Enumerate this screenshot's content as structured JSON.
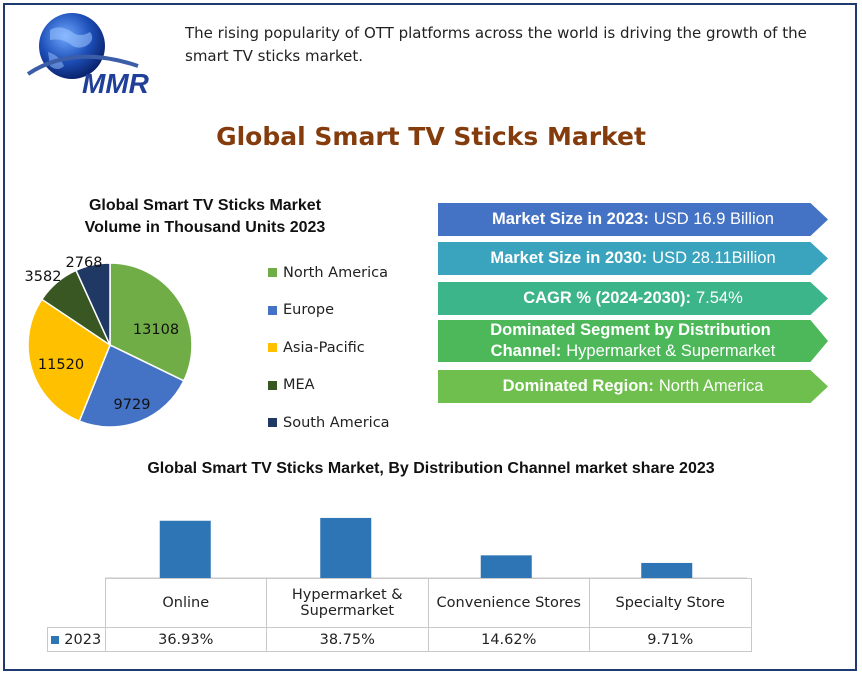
{
  "logo": {
    "text": "MMR",
    "icon": "globe-icon"
  },
  "intro_text": "The rising popularity of OTT platforms across the world is driving the growth of the smart TV sticks market.",
  "title": "Global Smart TV Sticks Market",
  "pie": {
    "title_line1": "Global Smart TV Sticks Market",
    "title_line2": "Volume in Thousand  Units 2023"
  },
  "highlights": [
    {
      "label": "Market Size in 2023:",
      "value": "USD 16.9 Billion",
      "color": "#4472c4"
    },
    {
      "label": "Market Size in 2030:",
      "value": "USD 28.11Billion",
      "color": "#3aa4be"
    },
    {
      "label": "CAGR % (2024-2030):",
      "value": "7.54%",
      "color": "#3cb58b"
    },
    {
      "label": "Dominated Segment by  Distribution Channel:",
      "value": "Hypermarket & Supermarket",
      "color": "#4cb85a",
      "label_line1": "Dominated Segment by  Distribution",
      "label_line2": "Channel:"
    },
    {
      "label": "Dominated Region:",
      "value": "North America",
      "color": "#6fbf4e"
    }
  ],
  "bar": {
    "title": "Global Smart TV Sticks Market, By  Distribution Channel market share  2023"
  },
  "chart_data": [
    {
      "type": "pie",
      "title": "Global Smart TV Sticks Market Volume in Thousand  Units 2023",
      "categories": [
        "North America",
        "Europe",
        "Asia-Pacific",
        "MEA",
        "South America"
      ],
      "values": [
        13108,
        9729,
        11520,
        3582,
        2768
      ],
      "labels": [
        "13108",
        "9729",
        "11520",
        "3582",
        "2768"
      ],
      "colors": [
        "#70ad47",
        "#4472c4",
        "#ffc000",
        "#385723",
        "#203864"
      ],
      "legend": "right"
    },
    {
      "type": "bar",
      "title": "Global Smart TV Sticks Market, By  Distribution Channel market share  2023",
      "categories": [
        "Online",
        "Hypermarket & Supermarket",
        "Convenience Stores",
        "Specialty Store"
      ],
      "category_lines": [
        [
          "Online"
        ],
        [
          "Hypermarket &",
          "Supermarket"
        ],
        [
          "Convenience Stores"
        ],
        [
          "Specialty Store"
        ]
      ],
      "series": [
        {
          "name": "2023",
          "values": [
            36.93,
            38.75,
            14.62,
            9.71
          ],
          "labels": [
            "36.93%",
            "38.75%",
            "14.62%",
            "9.71%"
          ],
          "color": "#2e75b6"
        }
      ],
      "ylim": [
        0,
        40
      ],
      "grid": false,
      "legend": "data-table"
    }
  ]
}
